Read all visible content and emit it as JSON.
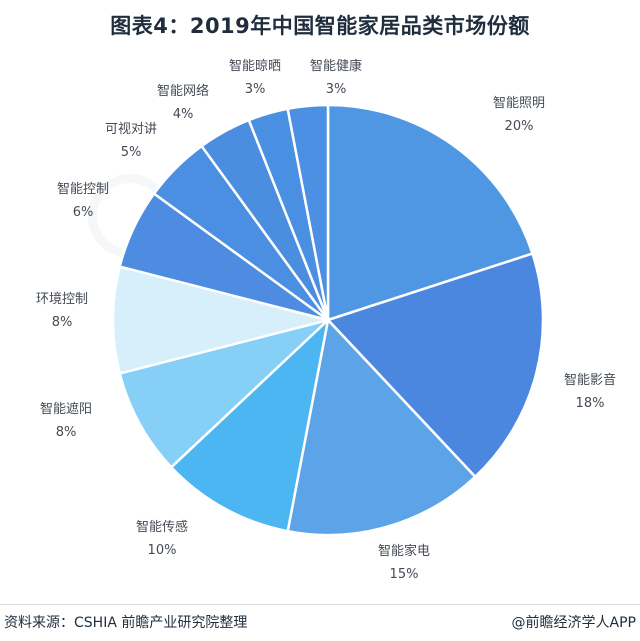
{
  "title": "图表4：2019年中国智能家居品类市场份额",
  "footer": {
    "source": "资料来源：CSHIA 前瞻产业研究院整理",
    "brand": "@前瞻经济学人APP"
  },
  "chart_data": {
    "type": "pie",
    "title": "图表4：2019年中国智能家居品类市场份额",
    "slices": [
      {
        "label": "智能照明",
        "value": 20,
        "pct_label": "20%",
        "color": "#4f97e3"
      },
      {
        "label": "智能影音",
        "value": 18,
        "pct_label": "18%",
        "color": "#4b87df"
      },
      {
        "label": "智能家电",
        "value": 15,
        "pct_label": "15%",
        "color": "#5ca4e7"
      },
      {
        "label": "智能传感",
        "value": 10,
        "pct_label": "10%",
        "color": "#4cb6f2"
      },
      {
        "label": "智能遮阳",
        "value": 8,
        "pct_label": "8%",
        "color": "#86cff6"
      },
      {
        "label": "环境控制",
        "value": 8,
        "pct_label": "8%",
        "color": "#d7effb"
      },
      {
        "label": "智能控制",
        "value": 6,
        "pct_label": "6%",
        "color": "#4d8ce0"
      },
      {
        "label": "可视对讲",
        "value": 5,
        "pct_label": "5%",
        "color": "#4a8fe1"
      },
      {
        "label": "智能网络",
        "value": 4,
        "pct_label": "4%",
        "color": "#4b8ee0"
      },
      {
        "label": "智能晾晒",
        "value": 3,
        "pct_label": "3%",
        "color": "#4a90e2"
      },
      {
        "label": "智能健康",
        "value": 3,
        "pct_label": "3%",
        "color": "#4b90e2"
      }
    ],
    "start_angle_deg": 0,
    "direction": "clockwise",
    "legend": "none"
  }
}
